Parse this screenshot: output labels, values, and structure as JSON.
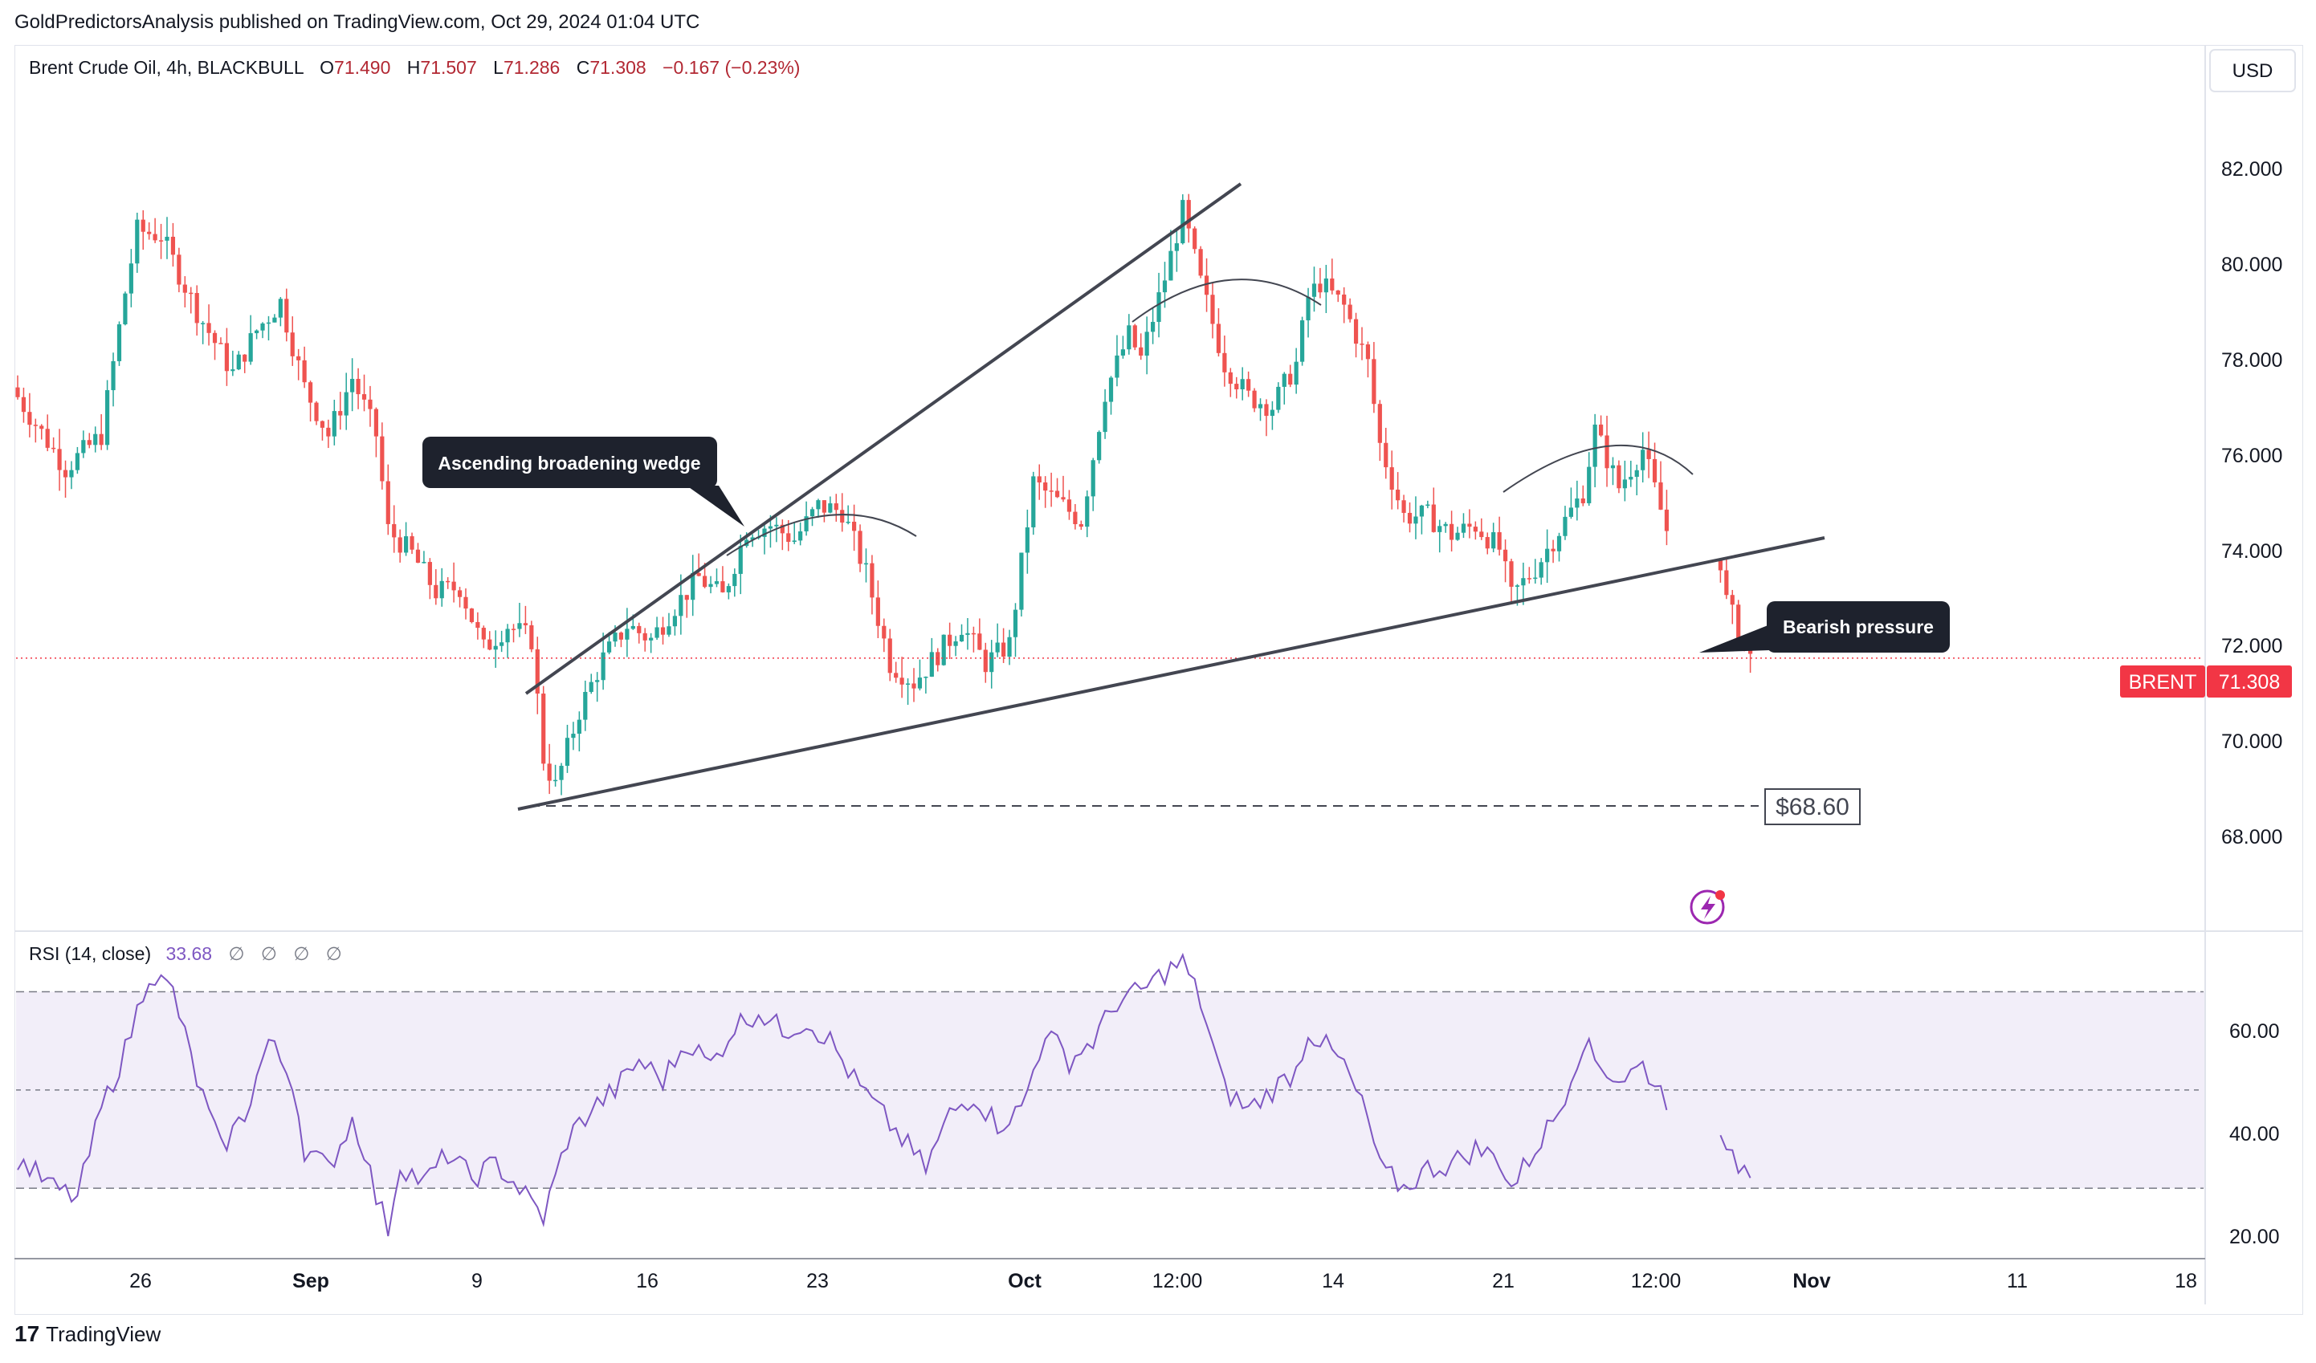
{
  "publisher_line": "GoldPredictorsAnalysis published on TradingView.com, Oct 29, 2024 01:04 UTC",
  "footer_brand": "TradingView",
  "footer_logo": "17",
  "colors": {
    "up": "#26a69a",
    "down": "#ef5350",
    "trendline": "#434651",
    "price_line": "#f23645",
    "rsi_line": "#7e57c2",
    "rsi_band": "#7e57c2",
    "label_bg": "#1e222d"
  },
  "chart_data": [
    {
      "type": "candlestick",
      "header": {
        "symbol": "Brent Crude Oil, 4h, BLACKBULL",
        "o_label": "O",
        "o": "71.490",
        "h_label": "H",
        "h": "71.507",
        "l_label": "L",
        "l": "71.286",
        "c_label": "C",
        "c": "71.308",
        "change": "−0.167 (−0.23%)"
      },
      "currency": "USD",
      "ylim": [
        65.6,
        84.1
      ],
      "y_ticks": [
        "82.000",
        "80.000",
        "78.000",
        "76.000",
        "74.000",
        "72.000",
        "70.000",
        "68.000"
      ],
      "last_price": {
        "symbol": "BRENT",
        "value": "71.308"
      },
      "price_anchors": [
        [
          0,
          76.8
        ],
        [
          8,
          75.3
        ],
        [
          14,
          76.0
        ],
        [
          18,
          79.0
        ],
        [
          20,
          80.3
        ],
        [
          24,
          80.2
        ],
        [
          30,
          78.6
        ],
        [
          36,
          77.3
        ],
        [
          40,
          78.2
        ],
        [
          44,
          78.8
        ],
        [
          48,
          77.0
        ],
        [
          52,
          76.0
        ],
        [
          56,
          77.2
        ],
        [
          60,
          76.0
        ],
        [
          62,
          74.0
        ],
        [
          66,
          73.5
        ],
        [
          70,
          72.7
        ],
        [
          74,
          72.8
        ],
        [
          78,
          71.5
        ],
        [
          82,
          72.0
        ],
        [
          86,
          71.7
        ],
        [
          88,
          69.2
        ],
        [
          90,
          68.6
        ],
        [
          94,
          70.2
        ],
        [
          98,
          71.3
        ],
        [
          102,
          72.0
        ],
        [
          106,
          71.7
        ],
        [
          110,
          72.4
        ],
        [
          114,
          73.0
        ],
        [
          118,
          72.6
        ],
        [
          122,
          74.0
        ],
        [
          126,
          74.1
        ],
        [
          130,
          73.8
        ],
        [
          134,
          74.5
        ],
        [
          138,
          74.4
        ],
        [
          142,
          73.1
        ],
        [
          146,
          71.2
        ],
        [
          150,
          70.8
        ],
        [
          154,
          71.4
        ],
        [
          158,
          72.0
        ],
        [
          162,
          71.2
        ],
        [
          166,
          71.6
        ],
        [
          170,
          75.0
        ],
        [
          174,
          74.6
        ],
        [
          178,
          74.2
        ],
        [
          182,
          76.9
        ],
        [
          186,
          78.1
        ],
        [
          188,
          77.6
        ],
        [
          192,
          79.3
        ],
        [
          195,
          80.7
        ],
        [
          198,
          79.2
        ],
        [
          202,
          77.5
        ],
        [
          206,
          76.8
        ],
        [
          210,
          76.6
        ],
        [
          214,
          77.5
        ],
        [
          216,
          78.9
        ],
        [
          218,
          79.2
        ],
        [
          222,
          78.7
        ],
        [
          226,
          77.5
        ],
        [
          228,
          75.8
        ],
        [
          232,
          74.3
        ],
        [
          236,
          74.3
        ],
        [
          240,
          73.9
        ],
        [
          244,
          74.1
        ],
        [
          248,
          73.6
        ],
        [
          250,
          72.6
        ],
        [
          254,
          73.2
        ],
        [
          258,
          74.0
        ],
        [
          262,
          74.8
        ],
        [
          264,
          76.1
        ],
        [
          268,
          74.9
        ],
        [
          272,
          75.7
        ],
        [
          276,
          74.0
        ],
        [
          280,
          75.5
        ],
        [
          283,
          75.1
        ],
        [
          286,
          72.5
        ],
        [
          290,
          71.3
        ]
      ],
      "annotations": [
        {
          "text": "Ascending broadening wedge"
        },
        {
          "text": "Bearish pressure"
        },
        {
          "text": "$68.60",
          "value": 68.6
        }
      ]
    },
    {
      "type": "line",
      "header": {
        "label": "RSI (14, close)",
        "value": "33.68",
        "extra": [
          "∅",
          "∅",
          "∅",
          "∅"
        ]
      },
      "ylim": [
        16,
        82
      ],
      "y_ticks": [
        "60.00",
        "40.00",
        "20.00"
      ],
      "bands": [
        30,
        50,
        70
      ],
      "rsi_anchors": [
        [
          0,
          36
        ],
        [
          6,
          30
        ],
        [
          10,
          28
        ],
        [
          14,
          46
        ],
        [
          18,
          58
        ],
        [
          22,
          74
        ],
        [
          26,
          70
        ],
        [
          30,
          52
        ],
        [
          34,
          38
        ],
        [
          38,
          45
        ],
        [
          42,
          60
        ],
        [
          46,
          52
        ],
        [
          48,
          38
        ],
        [
          52,
          34
        ],
        [
          56,
          44
        ],
        [
          58,
          38
        ],
        [
          60,
          28
        ],
        [
          62,
          22
        ],
        [
          64,
          35
        ],
        [
          68,
          31
        ],
        [
          72,
          37
        ],
        [
          76,
          32
        ],
        [
          80,
          35
        ],
        [
          84,
          30
        ],
        [
          88,
          24
        ],
        [
          92,
          40
        ],
        [
          96,
          46
        ],
        [
          100,
          50
        ],
        [
          104,
          56
        ],
        [
          108,
          52
        ],
        [
          112,
          60
        ],
        [
          116,
          55
        ],
        [
          120,
          63
        ],
        [
          124,
          66
        ],
        [
          128,
          62
        ],
        [
          132,
          64
        ],
        [
          136,
          60
        ],
        [
          140,
          52
        ],
        [
          144,
          46
        ],
        [
          148,
          40
        ],
        [
          152,
          34
        ],
        [
          156,
          45
        ],
        [
          160,
          49
        ],
        [
          164,
          43
        ],
        [
          168,
          46
        ],
        [
          172,
          62
        ],
        [
          176,
          56
        ],
        [
          180,
          60
        ],
        [
          184,
          68
        ],
        [
          188,
          70
        ],
        [
          192,
          74
        ],
        [
          195,
          76
        ],
        [
          198,
          68
        ],
        [
          202,
          50
        ],
        [
          206,
          46
        ],
        [
          210,
          50
        ],
        [
          214,
          54
        ],
        [
          216,
          62
        ],
        [
          218,
          60
        ],
        [
          222,
          55
        ],
        [
          226,
          44
        ],
        [
          228,
          34
        ],
        [
          232,
          30
        ],
        [
          236,
          34
        ],
        [
          240,
          35
        ],
        [
          244,
          38
        ],
        [
          248,
          36
        ],
        [
          250,
          30
        ],
        [
          254,
          38
        ],
        [
          258,
          46
        ],
        [
          262,
          60
        ],
        [
          264,
          56
        ],
        [
          268,
          52
        ],
        [
          272,
          55
        ],
        [
          276,
          48
        ],
        [
          280,
          50
        ],
        [
          283,
          57
        ],
        [
          286,
          36
        ],
        [
          290,
          33.68
        ]
      ]
    }
  ],
  "x_axis": [
    "26",
    "Sep",
    "9",
    "16",
    "23",
    "Oct",
    "12:00",
    "14",
    "21",
    "12:00",
    "Nov",
    "11",
    "18"
  ]
}
